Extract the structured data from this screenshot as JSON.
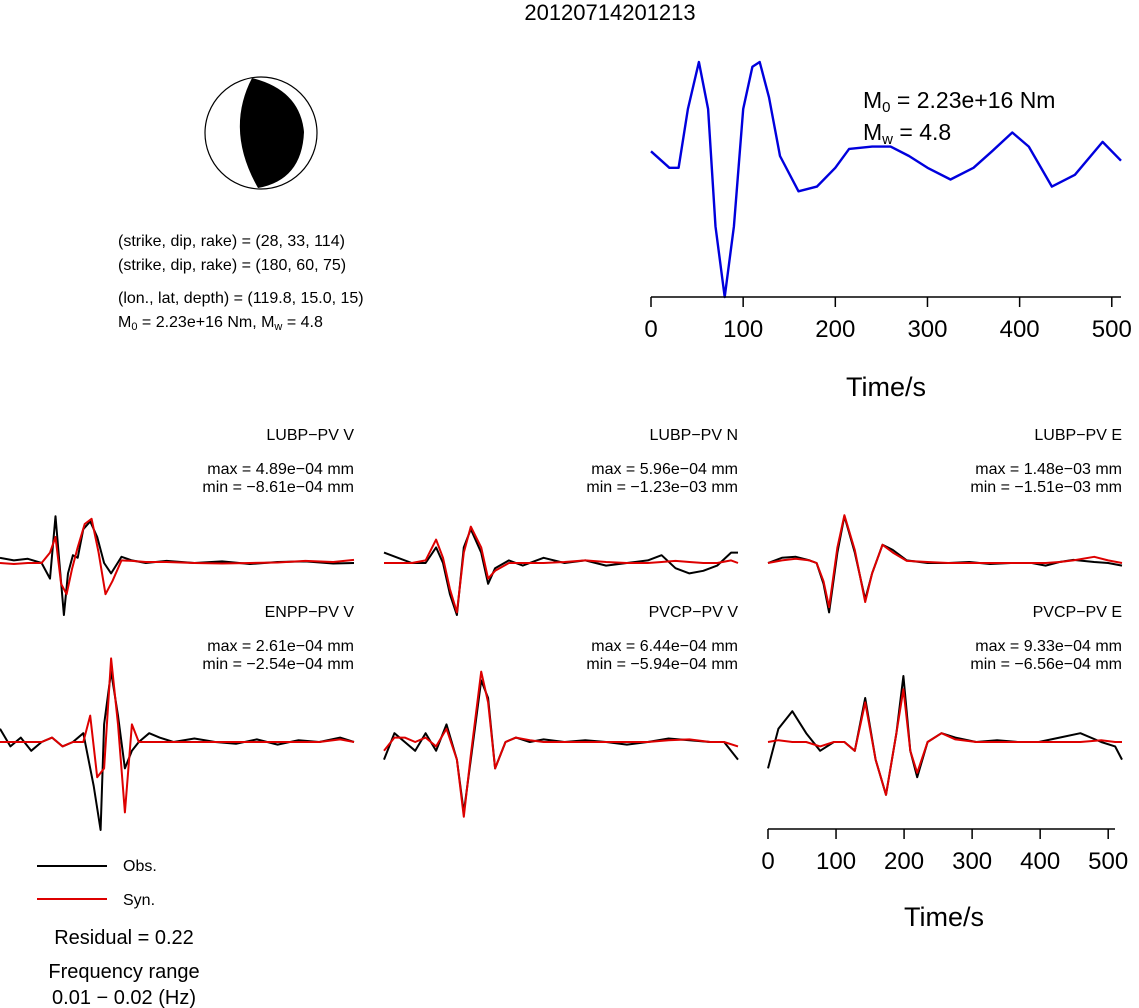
{
  "title": "20120714201213",
  "colors": {
    "obs": "#000000",
    "syn": "#dd0000",
    "stf": "#0000dd",
    "beachball": "#000000"
  },
  "source": {
    "line1": "(strike, dip, rake) = (28, 33, 114)",
    "line2": "(strike, dip, rake) = (180, 60, 75)",
    "line3": "(lon., lat, depth) = (119.8, 15.0, 15)",
    "m0_line_prefix": "M",
    "m0_line_sub": "0",
    "m0_line_mid": " = 2.23e+16 Nm, M",
    "m0_line_sub2": "w",
    "m0_line_end": " = 4.8"
  },
  "stf_labels": {
    "m0_prefix": "M",
    "m0_sub": "0",
    "m0_value": " = 2.23e+16 Nm",
    "mw_prefix": "M",
    "mw_sub": "w",
    "mw_value": " = 4.8"
  },
  "axis": {
    "xlabel": "Time/s",
    "ticks": [
      "0",
      "100",
      "200",
      "300",
      "400",
      "500"
    ]
  },
  "legend": {
    "obs": "Obs.",
    "syn": "Syn."
  },
  "residual": "Residual = 0.22",
  "frequency": {
    "label": "Frequency range",
    "value": "0.01 − 0.02 (Hz)"
  },
  "stations": [
    {
      "name": "LUBP−PV V",
      "max": "max = 4.89e−04 mm",
      "min": "min = −8.61e−04 mm"
    },
    {
      "name": "LUBP−PV N",
      "max": "max = 5.96e−04 mm",
      "min": "min = −1.23e−03 mm"
    },
    {
      "name": "LUBP−PV E",
      "max": "max = 1.48e−03 mm",
      "min": "min = −1.51e−03 mm"
    },
    {
      "name": "ENPP−PV V",
      "max": "max = 2.61e−04 mm",
      "min": "min = −2.54e−04 mm"
    },
    {
      "name": "PVCP−PV V",
      "max": "max = 6.44e−04 mm",
      "min": "min = −5.94e−04 mm"
    },
    {
      "name": "PVCP−PV E",
      "max": "max = 9.33e−04 mm",
      "min": "min = −6.56e−04 mm"
    }
  ],
  "chart_data": [
    {
      "type": "line",
      "name": "source-time-function",
      "xlabel": "Time/s",
      "xlim": [
        0,
        510
      ],
      "series": [
        {
          "x": [
            0,
            20,
            30,
            40,
            52,
            62,
            70,
            80,
            90,
            100,
            110,
            118,
            128,
            140,
            160,
            180,
            200,
            215,
            240,
            260,
            280,
            300,
            325,
            350,
            370,
            392,
            410,
            435,
            460,
            490,
            510
          ],
          "y": [
            0.62,
            0.55,
            0.55,
            0.8,
            1.0,
            0.8,
            0.3,
            0.0,
            0.3,
            0.8,
            0.98,
            1.0,
            0.85,
            0.6,
            0.45,
            0.47,
            0.55,
            0.63,
            0.64,
            0.64,
            0.6,
            0.55,
            0.5,
            0.55,
            0.62,
            0.7,
            0.64,
            0.47,
            0.52,
            0.66,
            0.58
          ]
        }
      ]
    },
    {
      "type": "line",
      "station": "LUBP-PV V",
      "xlim": [
        0,
        510
      ],
      "ylim": [
        -1,
        1
      ],
      "series": [
        {
          "name": "Obs.",
          "x": [
            0,
            20,
            40,
            60,
            72,
            80,
            85,
            92,
            98,
            105,
            112,
            120,
            130,
            140,
            150,
            160,
            175,
            190,
            210,
            240,
            280,
            320,
            360,
            400,
            440,
            480,
            510
          ],
          "y": [
            0.1,
            0.05,
            0.08,
            0.0,
            -0.3,
            0.9,
            0.1,
            -1.0,
            -0.2,
            0.15,
            0.1,
            0.65,
            0.8,
            0.5,
            0.0,
            -0.2,
            0.12,
            0.05,
            0.0,
            0.04,
            0.0,
            0.03,
            -0.02,
            0.02,
            0.03,
            -0.01,
            0.0
          ]
        },
        {
          "name": "Syn.",
          "x": [
            0,
            20,
            40,
            60,
            72,
            80,
            88,
            96,
            104,
            112,
            122,
            132,
            142,
            152,
            162,
            175,
            190,
            210,
            240,
            280,
            320,
            360,
            400,
            440,
            480,
            510
          ],
          "y": [
            0.0,
            -0.02,
            0.0,
            0.0,
            0.2,
            0.5,
            -0.4,
            -0.6,
            -0.1,
            0.3,
            0.75,
            0.85,
            0.2,
            -0.6,
            -0.35,
            0.05,
            0.04,
            0.02,
            0.02,
            0.0,
            -0.01,
            0.0,
            0.01,
            0.04,
            0.02,
            0.06
          ]
        }
      ]
    },
    {
      "type": "line",
      "station": "LUBP-PV N",
      "xlim": [
        0,
        510
      ],
      "ylim": [
        -1,
        1
      ],
      "series": [
        {
          "name": "Obs.",
          "x": [
            0,
            20,
            40,
            60,
            75,
            85,
            95,
            105,
            115,
            125,
            140,
            150,
            160,
            180,
            200,
            230,
            260,
            290,
            320,
            350,
            380,
            400,
            420,
            440,
            460,
            480,
            500,
            510
          ],
          "y": [
            0.2,
            0.1,
            0.0,
            0.0,
            0.3,
            0.0,
            -0.6,
            -1.0,
            0.3,
            0.65,
            0.2,
            -0.4,
            -0.1,
            0.05,
            -0.05,
            0.1,
            0.0,
            0.05,
            -0.05,
            0.0,
            0.05,
            0.15,
            -0.1,
            -0.2,
            -0.15,
            -0.05,
            0.2,
            0.2
          ]
        },
        {
          "name": "Syn.",
          "x": [
            0,
            20,
            40,
            60,
            75,
            85,
            95,
            105,
            115,
            125,
            140,
            150,
            160,
            180,
            200,
            230,
            260,
            290,
            320,
            350,
            380,
            400,
            420,
            440,
            460,
            480,
            500,
            510
          ],
          "y": [
            0.0,
            0.0,
            0.0,
            0.05,
            0.45,
            0.1,
            -0.5,
            -0.95,
            0.2,
            0.7,
            0.3,
            -0.3,
            -0.15,
            0.0,
            0.0,
            0.0,
            0.02,
            0.05,
            0.02,
            0.0,
            0.0,
            0.02,
            0.04,
            0.02,
            0.0,
            0.0,
            0.05,
            0.0
          ]
        }
      ]
    },
    {
      "type": "line",
      "station": "LUBP-PV E",
      "xlim": [
        0,
        510
      ],
      "ylim": [
        -1,
        1
      ],
      "series": [
        {
          "name": "Obs.",
          "x": [
            0,
            20,
            40,
            60,
            70,
            80,
            88,
            100,
            110,
            125,
            140,
            150,
            165,
            180,
            200,
            230,
            260,
            290,
            320,
            350,
            380,
            400,
            420,
            440,
            470,
            490,
            510
          ],
          "y": [
            0.0,
            0.1,
            0.12,
            0.05,
            0.0,
            -0.4,
            -0.95,
            0.2,
            0.9,
            0.2,
            -0.7,
            -0.2,
            0.35,
            0.25,
            0.05,
            0.0,
            0.0,
            0.02,
            -0.02,
            0.0,
            0.0,
            -0.05,
            0.02,
            0.06,
            0.02,
            0.0,
            -0.05
          ]
        },
        {
          "name": "Syn.",
          "x": [
            0,
            20,
            40,
            60,
            70,
            80,
            88,
            100,
            110,
            125,
            140,
            150,
            165,
            180,
            200,
            230,
            260,
            290,
            320,
            350,
            380,
            400,
            420,
            440,
            470,
            490,
            510
          ],
          "y": [
            0.0,
            0.05,
            0.08,
            0.05,
            0.0,
            -0.35,
            -0.85,
            0.3,
            0.92,
            0.25,
            -0.75,
            -0.2,
            0.35,
            0.2,
            0.04,
            0.02,
            0.0,
            0.0,
            0.0,
            0.0,
            0.0,
            0.0,
            0.02,
            0.05,
            0.12,
            0.05,
            0.0
          ]
        }
      ]
    },
    {
      "type": "line",
      "station": "ENPP-PV V",
      "xlim": [
        0,
        510
      ],
      "ylim": [
        -1,
        1
      ],
      "series": [
        {
          "name": "Obs.",
          "x": [
            0,
            15,
            30,
            45,
            60,
            75,
            90,
            105,
            120,
            135,
            145,
            150,
            160,
            170,
            180,
            190,
            200,
            215,
            230,
            250,
            280,
            310,
            340,
            370,
            400,
            430,
            460,
            490,
            510
          ],
          "y": [
            0.15,
            -0.05,
            0.05,
            -0.1,
            0.0,
            0.05,
            -0.05,
            0.0,
            0.1,
            -0.5,
            -1.0,
            0.2,
            0.8,
            0.3,
            -0.3,
            -0.1,
            0.0,
            0.1,
            0.05,
            0.0,
            0.04,
            0.0,
            -0.02,
            0.03,
            -0.03,
            0.02,
            0.0,
            0.05,
            0.0
          ]
        },
        {
          "name": "Syn.",
          "x": [
            0,
            15,
            30,
            45,
            60,
            75,
            90,
            105,
            120,
            130,
            140,
            150,
            160,
            170,
            180,
            190,
            200,
            215,
            230,
            250,
            280,
            310,
            340,
            370,
            400,
            430,
            460,
            490,
            510
          ],
          "y": [
            0.0,
            0.0,
            0.0,
            0.0,
            0.0,
            0.05,
            -0.05,
            0.0,
            0.0,
            0.3,
            -0.4,
            -0.3,
            0.95,
            0.2,
            -0.8,
            0.2,
            0.0,
            0.0,
            0.0,
            0.0,
            0.0,
            0.0,
            0.0,
            0.0,
            0.0,
            0.0,
            0.0,
            0.03,
            0.0
          ]
        }
      ]
    },
    {
      "type": "line",
      "station": "PVCP-PV V",
      "xlim": [
        0,
        510
      ],
      "ylim": [
        -1,
        1
      ],
      "series": [
        {
          "name": "Obs.",
          "x": [
            0,
            15,
            30,
            45,
            60,
            75,
            90,
            105,
            115,
            125,
            140,
            150,
            160,
            175,
            190,
            210,
            230,
            260,
            290,
            320,
            350,
            380,
            410,
            440,
            470,
            490,
            510
          ],
          "y": [
            -0.2,
            0.1,
            0.0,
            -0.1,
            0.1,
            -0.1,
            0.2,
            -0.2,
            -0.8,
            -0.2,
            0.7,
            0.5,
            -0.3,
            0.0,
            0.05,
            0.0,
            0.03,
            0.0,
            0.02,
            0.0,
            -0.03,
            0.0,
            0.04,
            0.02,
            0.0,
            0.0,
            -0.2
          ]
        },
        {
          "name": "Syn.",
          "x": [
            0,
            15,
            30,
            45,
            60,
            75,
            90,
            105,
            115,
            125,
            140,
            150,
            160,
            175,
            190,
            210,
            230,
            260,
            290,
            320,
            350,
            380,
            410,
            440,
            470,
            490,
            510
          ],
          "y": [
            -0.1,
            0.05,
            0.05,
            0.0,
            0.05,
            -0.05,
            0.15,
            -0.2,
            -0.85,
            -0.15,
            0.8,
            0.45,
            -0.3,
            0.0,
            0.05,
            0.02,
            0.0,
            0.0,
            0.0,
            0.0,
            0.0,
            0.0,
            0.02,
            0.03,
            0.0,
            0.0,
            -0.05
          ]
        }
      ]
    },
    {
      "type": "line",
      "station": "PVCP-PV E",
      "xlim": [
        0,
        510
      ],
      "ylim": [
        -1,
        1
      ],
      "series": [
        {
          "name": "Obs.",
          "x": [
            0,
            15,
            35,
            55,
            75,
            95,
            110,
            125,
            140,
            155,
            170,
            185,
            195,
            205,
            215,
            230,
            250,
            270,
            300,
            330,
            360,
            390,
            420,
            450,
            480,
            500,
            510
          ],
          "y": [
            -0.3,
            0.15,
            0.35,
            0.1,
            -0.1,
            0.0,
            0.0,
            -0.1,
            0.5,
            -0.2,
            -0.6,
            0.1,
            0.75,
            -0.1,
            -0.4,
            0.0,
            0.1,
            0.05,
            0.0,
            0.02,
            0.0,
            0.0,
            0.05,
            0.1,
            0.0,
            -0.05,
            -0.2
          ]
        },
        {
          "name": "Syn.",
          "x": [
            0,
            15,
            35,
            55,
            75,
            95,
            110,
            125,
            140,
            155,
            170,
            185,
            195,
            205,
            215,
            230,
            250,
            270,
            300,
            330,
            360,
            390,
            420,
            450,
            480,
            500,
            510
          ],
          "y": [
            0.0,
            0.02,
            0.0,
            0.0,
            -0.05,
            0.0,
            0.0,
            -0.1,
            0.45,
            -0.2,
            -0.6,
            0.1,
            0.6,
            -0.1,
            -0.35,
            0.0,
            0.1,
            0.03,
            0.0,
            0.0,
            0.0,
            0.0,
            0.0,
            0.0,
            0.02,
            0.0,
            0.0
          ]
        }
      ]
    }
  ]
}
